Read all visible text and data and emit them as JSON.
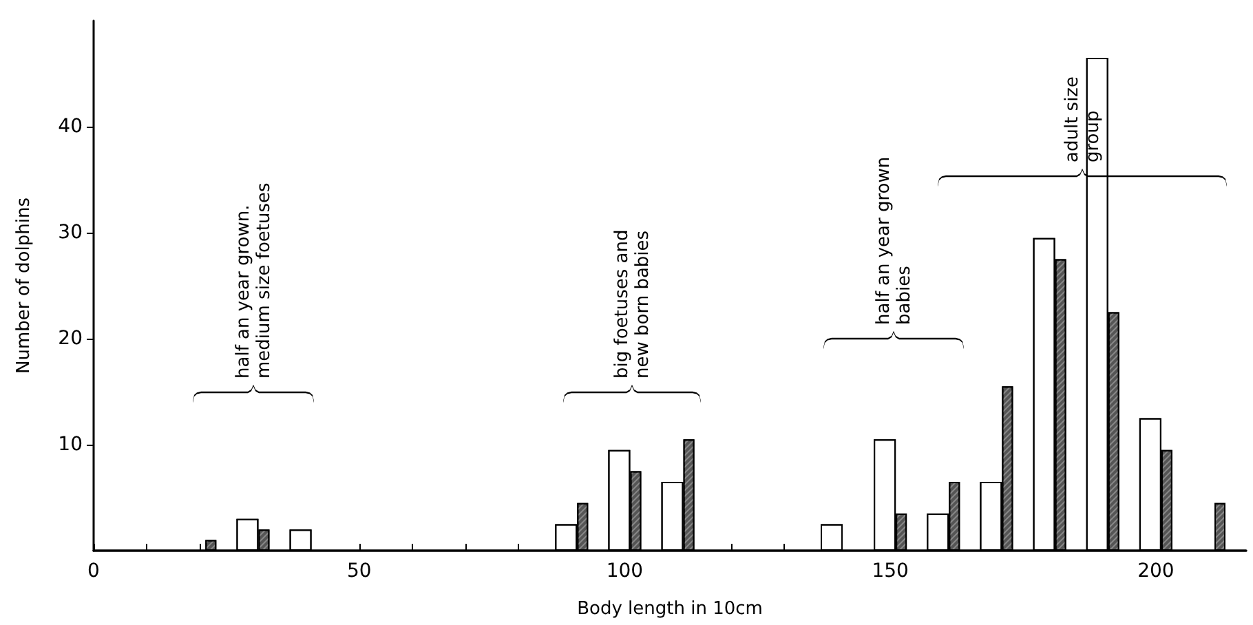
{
  "chart_data": {
    "type": "bar",
    "xlabel": "Body length in 10cm",
    "ylabel": "Number of dolphins",
    "x": [
      20,
      30,
      40,
      90,
      100,
      110,
      140,
      150,
      160,
      170,
      180,
      190,
      200,
      210
    ],
    "series": [
      {
        "color": "#ffffff",
        "values": [
          null,
          3,
          2,
          2.5,
          9.5,
          6.5,
          2.5,
          10.5,
          3.5,
          6.5,
          29.5,
          46.5,
          12.5,
          null
        ]
      },
      {
        "color": "#555555",
        "values": [
          1,
          2,
          null,
          4.5,
          7.5,
          10.5,
          null,
          3.5,
          6.5,
          15.5,
          27.5,
          22.5,
          9.5,
          4.5
        ]
      }
    ],
    "xlim": [
      0,
      217
    ],
    "ylim": [
      0,
      50
    ],
    "xticks": [
      0,
      {
        "value": 10,
        "label": null
      },
      {
        "value": 20,
        "label": null
      },
      {
        "value": 30,
        "label": null
      },
      {
        "value": 40,
        "label": null
      },
      50,
      {
        "value": 60,
        "label": null
      },
      {
        "value": 70,
        "label": null
      },
      {
        "value": 80,
        "label": null
      },
      {
        "value": 90,
        "label": null
      },
      100,
      {
        "value": 110,
        "label": null
      },
      {
        "value": 120,
        "label": null
      },
      {
        "value": 130,
        "label": null
      },
      {
        "value": 140,
        "label": null
      },
      150,
      {
        "value": 160,
        "label": null
      },
      {
        "value": 170,
        "label": null
      },
      {
        "value": 180,
        "label": null
      },
      {
        "value": 190,
        "label": null
      },
      200
    ],
    "yticks": [
      10,
      20,
      30,
      40
    ],
    "annotations": [
      "half an year grown.\nmedium size foetuses",
      "big foetuses and\nnew born babies",
      "half an year grown\nbabies",
      "adult size\ngroup"
    ],
    "grid": false
  }
}
